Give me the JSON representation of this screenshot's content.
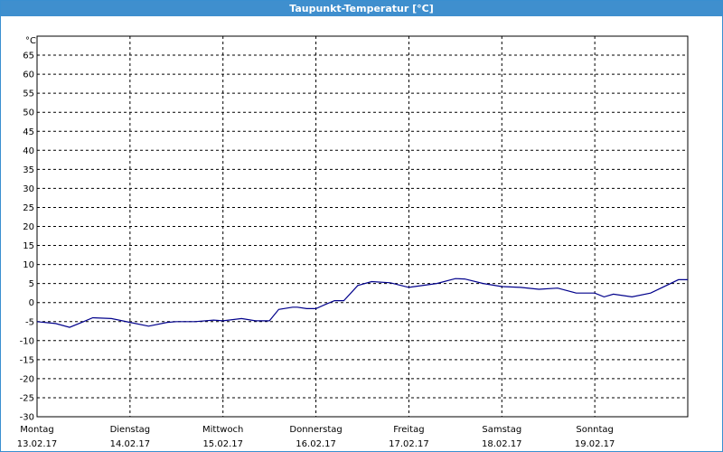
{
  "window": {
    "title": "Taupunkt-Temperatur [°C]"
  },
  "chart_data": {
    "type": "line",
    "title": "Taupunkt-Temperatur [°C]",
    "ylabel": "°C",
    "ylim": [
      -30,
      70
    ],
    "yticks": [
      65,
      60,
      55,
      50,
      45,
      40,
      35,
      30,
      25,
      20,
      15,
      10,
      5,
      0,
      -5,
      -10,
      -15,
      -20,
      -25,
      -30
    ],
    "xlim": [
      0,
      7
    ],
    "xticks": [
      {
        "day": "Montag",
        "date": "13.02.17"
      },
      {
        "day": "Dienstag",
        "date": "14.02.17"
      },
      {
        "day": "Mittwoch",
        "date": "15.02.17"
      },
      {
        "day": "Donnerstag",
        "date": "16.02.17"
      },
      {
        "day": "Freitag",
        "date": "17.02.17"
      },
      {
        "day": "Samstag",
        "date": "18.02.17"
      },
      {
        "day": "Sonntag",
        "date": "19.02.17"
      }
    ],
    "grid": true,
    "colors": {
      "line": "#00008b",
      "grid": "#000000"
    },
    "series": [
      {
        "x": [
          0.0,
          0.2,
          0.35,
          0.5,
          0.6,
          0.8,
          1.0,
          1.2,
          1.4,
          1.5,
          1.7,
          1.9,
          2.0,
          2.2,
          2.35,
          2.5,
          2.6,
          2.75,
          2.8,
          2.9,
          3.0,
          3.1,
          3.2,
          3.3,
          3.45,
          3.6,
          3.8,
          4.0,
          4.3,
          4.5,
          4.6,
          4.8,
          5.0,
          5.2,
          5.4,
          5.6,
          5.8,
          6.0,
          6.1,
          6.2,
          6.4,
          6.6,
          6.9,
          7.0
        ],
        "y": [
          -5,
          -5.5,
          -6.5,
          -5,
          -4,
          -4.2,
          -5.2,
          -6.2,
          -5.2,
          -5,
          -5,
          -4.6,
          -4.8,
          -4.2,
          -4.8,
          -4.8,
          -1.8,
          -1.2,
          -1.2,
          -1.6,
          -1.6,
          -0.5,
          0.5,
          0.5,
          4.5,
          5.5,
          5.2,
          4,
          5,
          6.3,
          6.2,
          5,
          4.2,
          4,
          3.5,
          3.8,
          2.5,
          2.5,
          1.5,
          2.2,
          1.5,
          2.5,
          6,
          6
        ]
      }
    ]
  }
}
